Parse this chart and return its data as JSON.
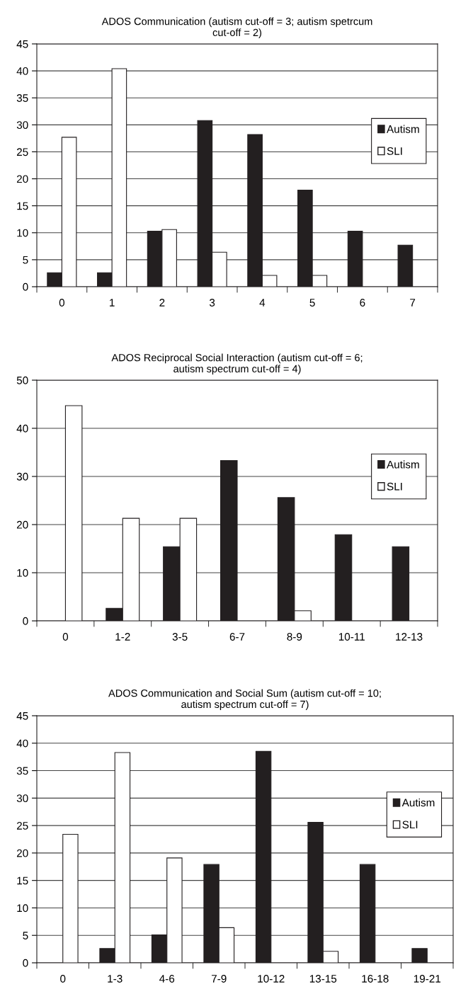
{
  "chart_data": [
    {
      "type": "bar",
      "title": "ADOS Communication (autism cut-off = 3; autism spetrcum\ncut-off = 2)",
      "categories": [
        "0",
        "1",
        "2",
        "3",
        "4",
        "5",
        "6",
        "7"
      ],
      "ylim": [
        0,
        45
      ],
      "yticks": [
        0,
        5,
        10,
        15,
        20,
        25,
        30,
        35,
        40,
        45
      ],
      "grid": "y",
      "legend": "right",
      "series": [
        {
          "name": "Autism",
          "color": "#231f20",
          "values": [
            2.6,
            2.6,
            10.3,
            30.8,
            28.2,
            17.9,
            10.3,
            7.7
          ]
        },
        {
          "name": "SLI",
          "color": "#ffffff",
          "values": [
            27.7,
            40.4,
            10.6,
            6.4,
            2.1,
            2.1,
            null,
            null
          ]
        }
      ]
    },
    {
      "type": "bar",
      "title": "ADOS Reciprocal Social Interaction (autism cut-off = 6;\nautism spectrum cut-off = 4)",
      "categories": [
        "0",
        "1-2",
        "3-5",
        "6-7",
        "8-9",
        "10-11",
        "12-13"
      ],
      "ylim": [
        0,
        50
      ],
      "yticks": [
        0,
        10,
        20,
        30,
        40,
        50
      ],
      "grid": "y",
      "legend": "right",
      "series": [
        {
          "name": "Autism",
          "color": "#231f20",
          "values": [
            null,
            2.6,
            15.4,
            33.3,
            25.6,
            17.9,
            15.4
          ]
        },
        {
          "name": "SLI",
          "color": "#ffffff",
          "values": [
            44.7,
            21.3,
            21.3,
            null,
            2.1,
            null,
            null
          ]
        }
      ]
    },
    {
      "type": "bar",
      "title": "ADOS Communication and Social Sum (autism cut-off = 10;\nautism spectrum cut-off = 7)",
      "categories": [
        "0",
        "1-3",
        "4-6",
        "7-9",
        "10-12",
        "13-15",
        "16-18",
        "19-21"
      ],
      "ylim": [
        0,
        45
      ],
      "yticks": [
        0,
        5,
        10,
        15,
        20,
        25,
        30,
        35,
        40,
        45
      ],
      "grid": "y",
      "legend": "right",
      "series": [
        {
          "name": "Autism",
          "color": "#231f20",
          "values": [
            null,
            2.6,
            5.1,
            17.9,
            38.5,
            25.6,
            17.9,
            2.6
          ]
        },
        {
          "name": "SLI",
          "color": "#ffffff",
          "values": [
            23.4,
            38.3,
            19.1,
            6.4,
            null,
            2.1,
            null,
            null
          ]
        }
      ]
    }
  ]
}
